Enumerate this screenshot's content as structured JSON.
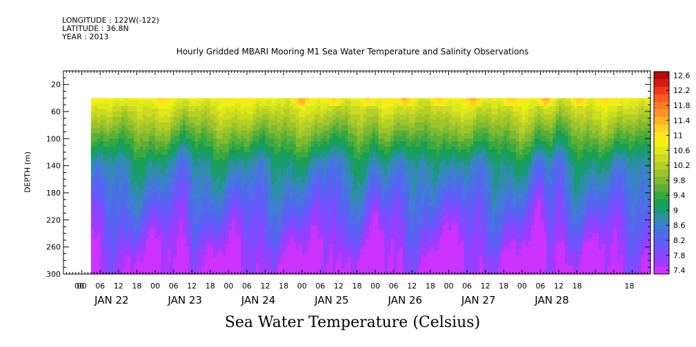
{
  "header": {
    "longitude": "LONGITUDE : 122W(-122)",
    "latitude": "LATITUDE : 36.8N",
    "year": "YEAR : 2013"
  },
  "chart_data": {
    "type": "heatmap",
    "title": "Hourly Gridded MBARI Mooring M1 Sea Water Temperature and Salinity Observations",
    "xlabel": "Sea Water Temperature (Celsius)",
    "ylabel": "DEPTH (m)",
    "xlim_hours": [
      -6,
      186
    ],
    "data_start_hour": 3,
    "missing_depth_range": [
      10,
      40
    ],
    "ylim": [
      300,
      0
    ],
    "y_ticks": [
      20,
      60,
      100,
      140,
      180,
      220,
      260,
      300
    ],
    "x_tick_hours": [
      "00",
      "06",
      "12",
      "18",
      "00",
      "06",
      "12",
      "18",
      "00",
      "06",
      "12",
      "18",
      "00",
      "06",
      "12",
      "18",
      "00",
      "06",
      "12",
      "18",
      "00",
      "06",
      "12",
      "18",
      "00",
      "06",
      "12",
      "18"
    ],
    "x_tick_values": [
      0,
      6,
      12,
      18,
      24,
      30,
      36,
      42,
      48,
      54,
      60,
      66,
      72,
      78,
      84,
      90,
      96,
      102,
      108,
      114,
      120,
      126,
      132,
      138,
      144,
      150,
      156,
      162
    ],
    "extra_edge_ticks": [
      -6,
      180
    ],
    "x_day_labels": [
      "JAN 22",
      "JAN 23",
      "JAN 24",
      "JAN 25",
      "JAN 26",
      "JAN 27",
      "JAN 28"
    ],
    "x_day_centers": [
      12,
      36,
      60,
      84,
      108,
      132,
      156
    ],
    "colorbar": {
      "levels": [
        7.4,
        7.6,
        7.8,
        8.0,
        8.2,
        8.4,
        8.6,
        8.8,
        9.0,
        9.2,
        9.4,
        9.6,
        9.8,
        10.0,
        10.2,
        10.4,
        10.6,
        10.8,
        11.0,
        11.2,
        11.4,
        11.6,
        11.8,
        12.0,
        12.2,
        12.4,
        12.6,
        12.8
      ],
      "labels": [
        "12.6",
        "12.2",
        "11.8",
        "11.4",
        "11",
        "10.6",
        "10.2",
        "9.8",
        "9.4",
        "9",
        "8.6",
        "8.2",
        "7.8",
        "7.4"
      ],
      "label_values": [
        12.6,
        12.2,
        11.8,
        11.4,
        11.0,
        10.6,
        10.2,
        9.8,
        9.4,
        9.0,
        8.6,
        8.2,
        7.8,
        7.4
      ],
      "colors": [
        "#cc33ff",
        "#a13bff",
        "#8b45ff",
        "#7055ff",
        "#5a62f2",
        "#4a6fe6",
        "#3f7fd0",
        "#2f8ea8",
        "#1a9a78",
        "#18a050",
        "#3aa840",
        "#5cb038",
        "#7ebb30",
        "#9ec42c",
        "#b4cf26",
        "#cadb20",
        "#dde81a",
        "#f0f014",
        "#ffe81a",
        "#ffd020",
        "#ffb224",
        "#ff9426",
        "#ff7a22",
        "#ff5a1c",
        "#f23818",
        "#d81a14",
        "#b80808"
      ]
    },
    "temperature_profile": {
      "depth": [
        10,
        40,
        45,
        55,
        65,
        75,
        85,
        95,
        105,
        115,
        125,
        135,
        145,
        155,
        165,
        175,
        185,
        195,
        205,
        215,
        225,
        235,
        245,
        255,
        265,
        275,
        285,
        295,
        300
      ],
      "temp_typical": [
        12.4,
        11.0,
        10.8,
        10.6,
        10.4,
        10.2,
        10.0,
        9.8,
        9.6,
        9.4,
        9.2,
        9.0,
        8.9,
        8.8,
        8.7,
        8.6,
        8.5,
        8.4,
        8.3,
        8.2,
        8.1,
        8.0,
        7.9,
        7.8,
        7.7,
        7.6,
        7.55,
        7.5,
        7.45
      ]
    }
  }
}
